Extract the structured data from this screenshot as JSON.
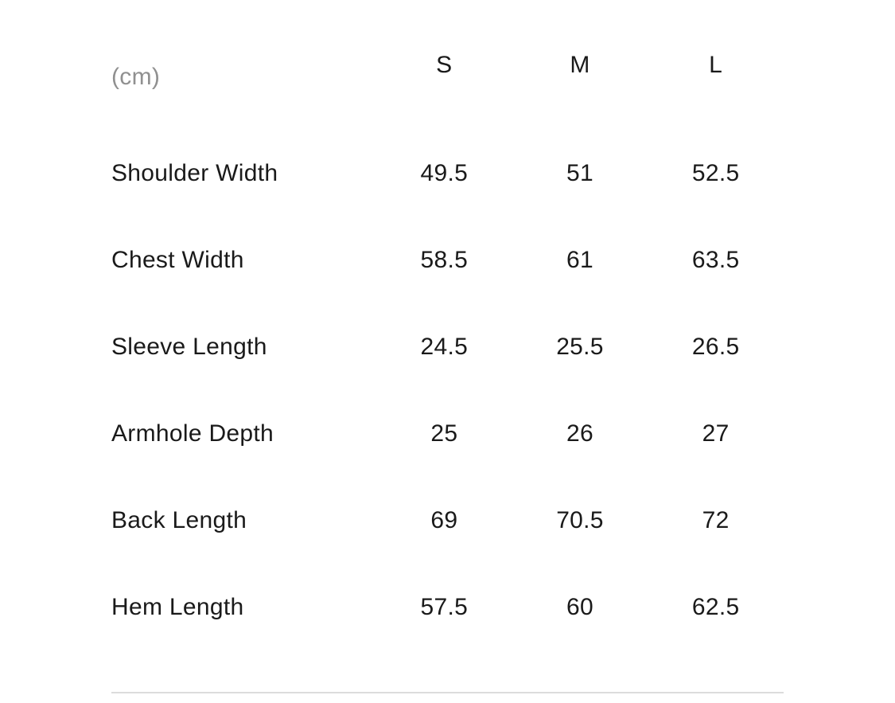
{
  "size_chart": {
    "unit_label": "(cm)",
    "columns": [
      "S",
      "M",
      "L"
    ],
    "rows": [
      {
        "label": "Shoulder Width",
        "values": [
          "49.5",
          "51",
          "52.5"
        ]
      },
      {
        "label": "Chest Width",
        "values": [
          "58.5",
          "61",
          "63.5"
        ]
      },
      {
        "label": "Sleeve Length",
        "values": [
          "24.5",
          "25.5",
          "26.5"
        ]
      },
      {
        "label": "Armhole Depth",
        "values": [
          "25",
          "26",
          "27"
        ]
      },
      {
        "label": "Back Length",
        "values": [
          "69",
          "70.5",
          "72"
        ]
      },
      {
        "label": "Hem Length",
        "values": [
          "57.5",
          "60",
          "62.5"
        ]
      }
    ],
    "colors": {
      "text": "#1a1a1a",
      "muted_text": "#909090",
      "divider": "#dcdcdc",
      "background": "#ffffff"
    }
  }
}
